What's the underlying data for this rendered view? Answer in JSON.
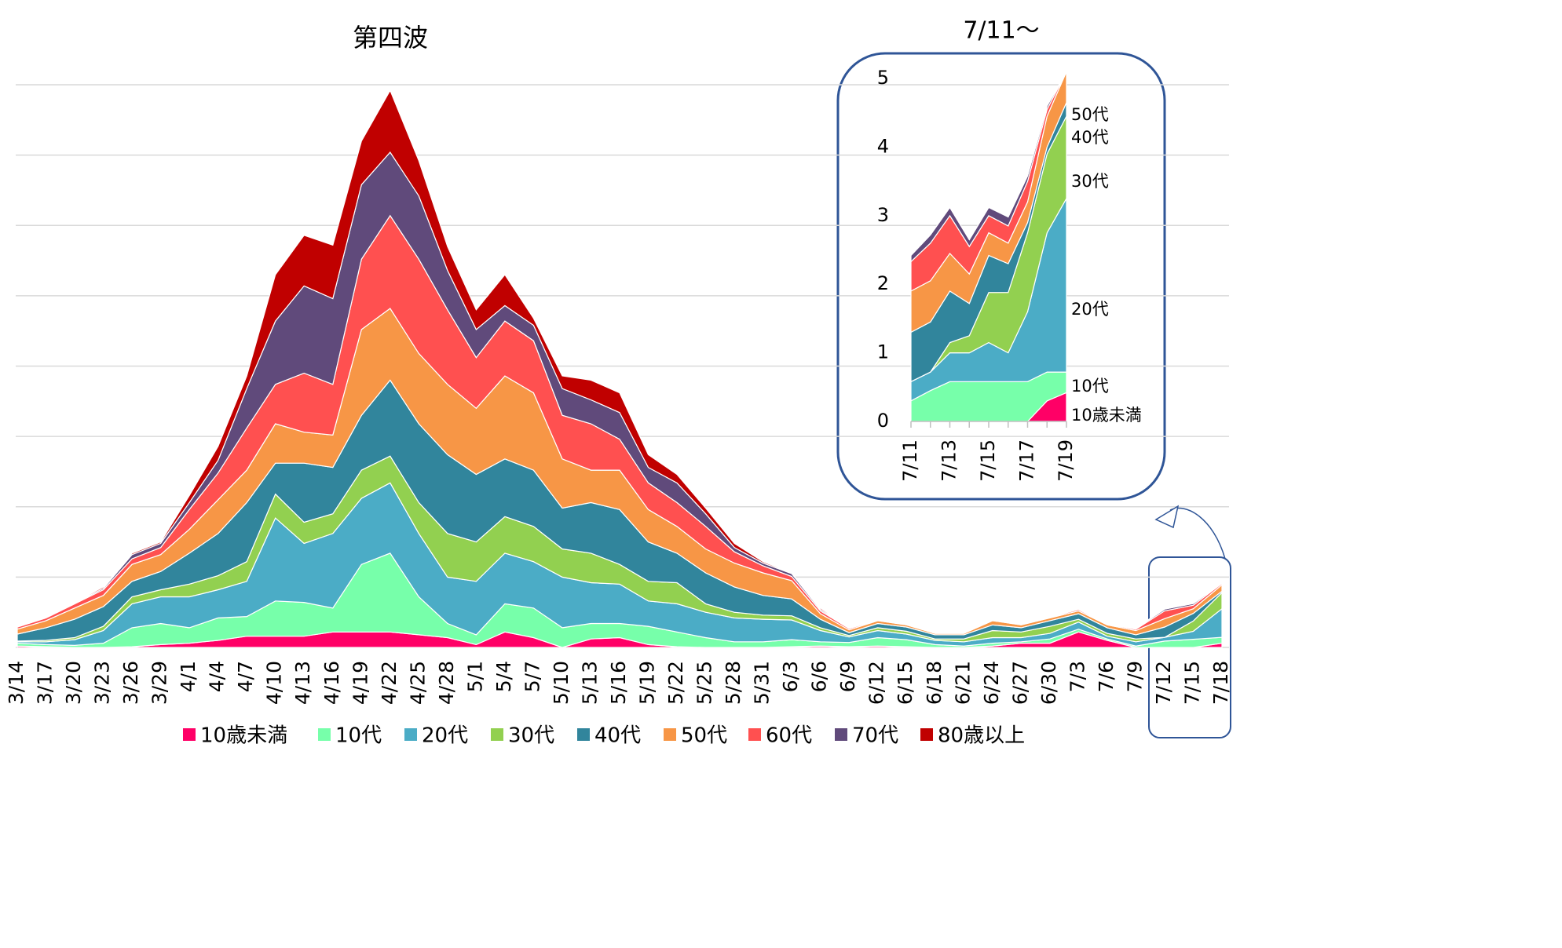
{
  "chart_data": [
    {
      "type": "area",
      "stacked": true,
      "annotation": "第四波",
      "categories": [
        "3/14",
        "3/17",
        "3/20",
        "3/23",
        "3/26",
        "3/29",
        "4/1",
        "4/4",
        "4/7",
        "4/10",
        "4/13",
        "4/16",
        "4/19",
        "4/22",
        "4/25",
        "4/28",
        "5/1",
        "5/4",
        "5/7",
        "5/10",
        "5/13",
        "5/16",
        "5/19",
        "5/22",
        "5/25",
        "5/28",
        "5/31",
        "6/3",
        "6/6",
        "6/9",
        "6/12",
        "6/15",
        "6/18",
        "6/21",
        "6/24",
        "6/27",
        "6/30",
        "7/3",
        "7/6",
        "7/9",
        "7/12",
        "7/15",
        "7/18"
      ],
      "series": [
        {
          "name": "10歳未満",
          "color": "#ff0066",
          "values": [
            0.1,
            0.05,
            0,
            0,
            0.05,
            0.2,
            0.3,
            0.5,
            0.8,
            0.8,
            0.8,
            1.1,
            1.1,
            1.1,
            0.9,
            0.7,
            0.2,
            1.1,
            0.7,
            0,
            0.6,
            0.7,
            0.2,
            0.05,
            0,
            0,
            0,
            0.05,
            0.1,
            0.05,
            0.1,
            0.05,
            0,
            0,
            0.1,
            0.3,
            0.3,
            1.1,
            0.5,
            0,
            0,
            0,
            0.3
          ]
        },
        {
          "name": "10代",
          "color": "#77ffaa",
          "values": [
            0.2,
            0.15,
            0.15,
            0.3,
            1.35,
            1.5,
            1.1,
            1.6,
            1.4,
            2.5,
            2.4,
            1.7,
            4.8,
            5.6,
            2.7,
            1.0,
            0.7,
            2.0,
            2.1,
            1.4,
            1.1,
            1.0,
            1.3,
            1.05,
            0.7,
            0.4,
            0.4,
            0.5,
            0.3,
            0.3,
            0.6,
            0.5,
            0.2,
            0.1,
            0.2,
            0.1,
            0.3,
            0.2,
            0.1,
            0.1,
            0.45,
            0.58,
            0.42
          ]
        },
        {
          "name": "20代",
          "color": "#4bacc6",
          "values": [
            0.1,
            0.2,
            0.4,
            0.9,
            1.7,
            1.9,
            2.2,
            2.0,
            2.5,
            5.9,
            4.2,
            5.3,
            4.7,
            5.0,
            4.5,
            3.3,
            3.8,
            3.6,
            3.3,
            3.6,
            2.9,
            2.8,
            1.8,
            2.0,
            1.8,
            1.7,
            1.6,
            1.4,
            0.8,
            0.4,
            0.5,
            0.4,
            0.3,
            0.3,
            0.4,
            0.3,
            0.4,
            0.5,
            0.2,
            0.3,
            0.27,
            0.57,
            2.03
          ]
        },
        {
          "name": "30代",
          "color": "#92d050",
          "values": [
            0.05,
            0.1,
            0.15,
            0.3,
            0.5,
            0.5,
            0.9,
            1.0,
            1.4,
            1.7,
            1.5,
            1.4,
            2.0,
            1.9,
            2.2,
            3.1,
            2.8,
            2.6,
            2.5,
            2.0,
            2.1,
            1.4,
            1.4,
            1.5,
            0.6,
            0.4,
            0.3,
            0.3,
            0.2,
            0.1,
            0.2,
            0.2,
            0.1,
            0.2,
            0.5,
            0.4,
            0.5,
            0.2,
            0.2,
            0.2,
            0,
            0.73,
            1.15
          ]
        },
        {
          "name": "40代",
          "color": "#31859c",
          "values": [
            0.5,
            0.9,
            1.3,
            1.4,
            1.1,
            1.3,
            2.2,
            3.0,
            4.2,
            2.2,
            4.2,
            3.3,
            3.9,
            5.4,
            5.6,
            5.6,
            4.8,
            4.1,
            4.0,
            2.9,
            3.6,
            3.9,
            2.8,
            2.1,
            2.2,
            1.8,
            1.4,
            1.2,
            0.6,
            0.2,
            0.3,
            0.3,
            0.3,
            0.3,
            0.4,
            0.3,
            0.4,
            0.4,
            0.4,
            0.3,
            0.73,
            0.54,
            0.1
          ]
        },
        {
          "name": "50代",
          "color": "#f79646",
          "values": [
            0.35,
            0.5,
            0.8,
            0.8,
            1.2,
            1.2,
            1.7,
            2.4,
            2.3,
            2.8,
            2.2,
            2.3,
            6.1,
            5.1,
            5.0,
            5.0,
            4.7,
            5.9,
            5.5,
            3.5,
            2.3,
            2.8,
            2.3,
            1.9,
            1.7,
            1.7,
            1.6,
            1.3,
            0.4,
            0.2,
            0.2,
            0.15,
            0.1,
            0.1,
            0.3,
            0.2,
            0.2,
            0.2,
            0.2,
            0.3,
            0.6,
            0.33,
            0.45
          ]
        },
        {
          "name": "60代",
          "color": "#ff5050",
          "values": [
            0.15,
            0.2,
            0.3,
            0.4,
            0.4,
            0.5,
            1.4,
            1.9,
            3.0,
            2.8,
            4.2,
            3.6,
            5.0,
            6.6,
            6.7,
            5.3,
            3.6,
            3.9,
            3.7,
            3.1,
            3.3,
            2.2,
            1.9,
            1.7,
            1.6,
            0.8,
            0.5,
            0.3,
            0.2,
            0.1,
            0.05,
            0.05,
            0.05,
            0.05,
            0.05,
            0.05,
            0.05,
            0.1,
            0.05,
            0.1,
            0.55,
            0.25,
            0.1
          ]
        },
        {
          "name": "70代",
          "color": "#604a7b",
          "values": [
            0.05,
            0.05,
            0.05,
            0.1,
            0.3,
            0.3,
            0.5,
            0.9,
            2.8,
            4.5,
            6.2,
            6.1,
            5.3,
            4.5,
            4.5,
            2.8,
            2.0,
            1.1,
            1.1,
            1.9,
            1.7,
            1.9,
            1.1,
            1.4,
            0.9,
            0.3,
            0.2,
            0.2,
            0.1,
            0.03,
            0.03,
            0.03,
            0.03,
            0.03,
            0.03,
            0.03,
            0.03,
            0.05,
            0.03,
            0.05,
            0.12,
            0.12,
            0.05
          ]
        },
        {
          "name": "80歳以上",
          "color": "#c00000",
          "values": [
            0.05,
            0.05,
            0.05,
            0.1,
            0.1,
            0.1,
            0.5,
            1.0,
            0.9,
            3.3,
            3.6,
            3.8,
            3.1,
            4.4,
            2.5,
            1.7,
            1.4,
            2.2,
            0.5,
            0.9,
            1.4,
            1.4,
            0.9,
            0.6,
            0.4,
            0.3,
            0.1,
            0.05,
            0.1,
            0.02,
            0.02,
            0.02,
            0.02,
            0.02,
            0.02,
            0.02,
            0.02,
            0.05,
            0.02,
            0.05,
            0,
            0,
            0
          ]
        }
      ],
      "ylim": [
        0,
        40
      ],
      "yticks": [
        0,
        5,
        10,
        15,
        20,
        25,
        30,
        35,
        40
      ],
      "grid": true,
      "legend": "bottom"
    },
    {
      "type": "area",
      "stacked": true,
      "title": "7/11～",
      "categories": [
        "7/11",
        null,
        "7/13",
        null,
        "7/15",
        null,
        "7/17",
        null,
        "7/19"
      ],
      "series": [
        {
          "name": "10歳未満",
          "color": "#ff0066",
          "values": [
            0,
            0,
            0,
            0,
            0,
            0,
            0,
            0.3,
            0.42
          ]
        },
        {
          "name": "10代",
          "color": "#77ffaa",
          "values": [
            0.3,
            0.45,
            0.58,
            0.58,
            0.58,
            0.58,
            0.58,
            0.42,
            0.3
          ]
        },
        {
          "name": "20代",
          "color": "#4bacc6",
          "values": [
            0.28,
            0.27,
            0.42,
            0.42,
            0.57,
            0.42,
            1.02,
            2.03,
            2.53
          ]
        },
        {
          "name": "30代",
          "color": "#92d050",
          "values": [
            0,
            0,
            0.15,
            0.25,
            0.73,
            0.88,
            1.15,
            1.15,
            1.2
          ]
        },
        {
          "name": "40代",
          "color": "#31859c",
          "values": [
            0.72,
            0.73,
            0.75,
            0.47,
            0.54,
            0.42,
            0.15,
            0.1,
            0.2
          ]
        },
        {
          "name": "50代",
          "color": "#f79646",
          "values": [
            0.6,
            0.6,
            0.55,
            0.43,
            0.33,
            0.3,
            0.3,
            0.45,
            0.45
          ]
        },
        {
          "name": "60代",
          "color": "#ff5050",
          "values": [
            0.43,
            0.55,
            0.55,
            0.4,
            0.25,
            0.25,
            0.3,
            0.1,
            0
          ]
        },
        {
          "name": "70代",
          "color": "#604a7b",
          "values": [
            0.09,
            0.12,
            0.12,
            0.1,
            0.12,
            0.13,
            0.08,
            0.05,
            0
          ]
        },
        {
          "name": "80歳以上",
          "color": "#c00000",
          "values": [
            0,
            0,
            0,
            0,
            0,
            0,
            0,
            0,
            0
          ]
        }
      ],
      "annotations": [
        "50代",
        "40代",
        "30代",
        "20代",
        "10代",
        "10歳未満"
      ],
      "ylim": [
        0,
        5
      ],
      "yticks": [
        0,
        1,
        2,
        3,
        4,
        5
      ]
    }
  ]
}
